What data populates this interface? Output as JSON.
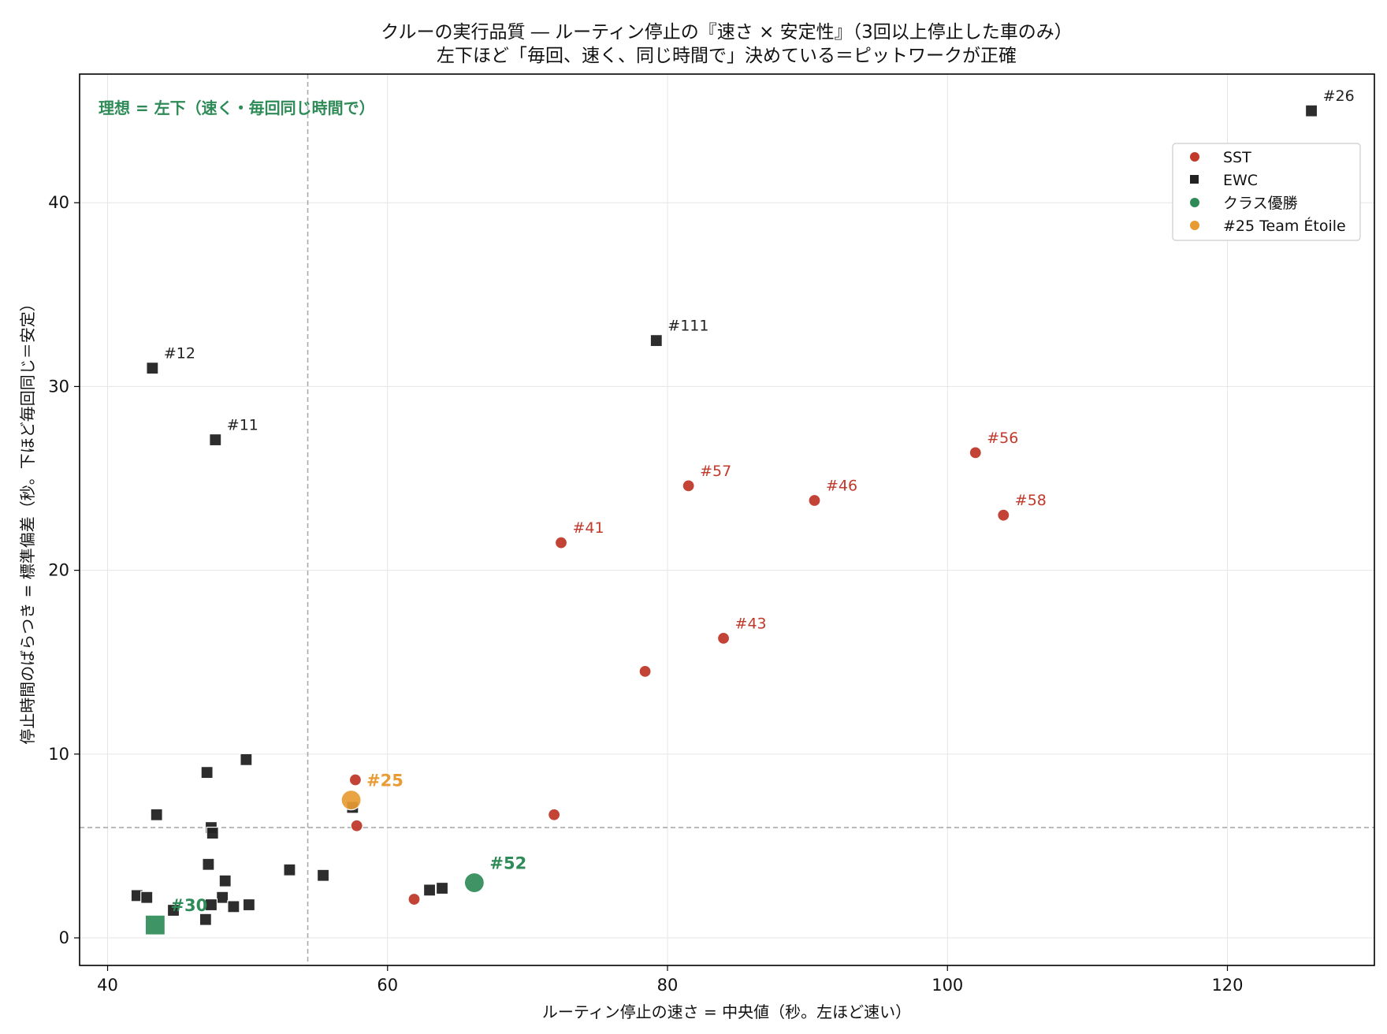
{
  "chart_data": {
    "type": "scatter",
    "title": "クルーの実行品質 ― ルーティン停止の『速さ × 安定性』（3回以上停止した車のみ）",
    "subtitle": "左下ほど「毎回、速く、同じ時間で」決めている＝ピットワークが正確",
    "xlabel": "ルーティン停止の速さ = 中央値（秒。左ほど速い）",
    "ylabel": "停止時間のばらつき = 標準偏差（秒。下ほど毎回同じ＝安定）",
    "xlim": [
      38,
      130.5
    ],
    "ylim": [
      -1.5,
      47
    ],
    "xticks": [
      40,
      60,
      80,
      100,
      120
    ],
    "yticks": [
      0,
      10,
      20,
      30,
      40
    ],
    "grid": true,
    "legend_position": "upper-right",
    "annotation": "理想 = 左下（速く・毎回同じ時間で）",
    "reference_lines": {
      "x_median": 54.3,
      "y_median": 6.0
    },
    "colors": {
      "SST": "#c0392b",
      "EWC": "#222222",
      "winner": "#2e8b57",
      "etoile": "#e89b33"
    },
    "series": [
      {
        "name": "SST",
        "marker": "circle",
        "points": [
          {
            "x": 72.4,
            "y": 21.5,
            "label": "#41"
          },
          {
            "x": 81.5,
            "y": 24.6,
            "label": "#57"
          },
          {
            "x": 90.5,
            "y": 23.8,
            "label": "#46"
          },
          {
            "x": 102.0,
            "y": 26.4,
            "label": "#56"
          },
          {
            "x": 104.0,
            "y": 23.0,
            "label": "#58"
          },
          {
            "x": 84.0,
            "y": 16.3,
            "label": "#43"
          },
          {
            "x": 78.4,
            "y": 14.5,
            "label": ""
          },
          {
            "x": 71.9,
            "y": 6.7,
            "label": ""
          },
          {
            "x": 57.7,
            "y": 8.6,
            "label": ""
          },
          {
            "x": 57.8,
            "y": 6.1,
            "label": ""
          },
          {
            "x": 61.9,
            "y": 2.1,
            "label": ""
          }
        ]
      },
      {
        "name": "EWC",
        "marker": "square",
        "points": [
          {
            "x": 126.0,
            "y": 45.0,
            "label": "#26"
          },
          {
            "x": 79.2,
            "y": 32.5,
            "label": "#111"
          },
          {
            "x": 43.2,
            "y": 31.0,
            "label": "#12"
          },
          {
            "x": 47.7,
            "y": 27.1,
            "label": "#11"
          },
          {
            "x": 49.9,
            "y": 9.7,
            "label": ""
          },
          {
            "x": 47.1,
            "y": 9.0,
            "label": ""
          },
          {
            "x": 43.5,
            "y": 6.7,
            "label": ""
          },
          {
            "x": 47.4,
            "y": 6.0,
            "label": ""
          },
          {
            "x": 47.5,
            "y": 5.7,
            "label": ""
          },
          {
            "x": 57.5,
            "y": 7.1,
            "label": ""
          },
          {
            "x": 47.2,
            "y": 4.0,
            "label": ""
          },
          {
            "x": 53.0,
            "y": 3.7,
            "label": ""
          },
          {
            "x": 55.4,
            "y": 3.4,
            "label": ""
          },
          {
            "x": 48.4,
            "y": 3.1,
            "label": ""
          },
          {
            "x": 42.1,
            "y": 2.3,
            "label": ""
          },
          {
            "x": 42.8,
            "y": 2.2,
            "label": ""
          },
          {
            "x": 48.2,
            "y": 2.2,
            "label": ""
          },
          {
            "x": 47.4,
            "y": 1.8,
            "label": ""
          },
          {
            "x": 49.0,
            "y": 1.7,
            "label": ""
          },
          {
            "x": 50.1,
            "y": 1.8,
            "label": ""
          },
          {
            "x": 44.7,
            "y": 1.5,
            "label": ""
          },
          {
            "x": 47.0,
            "y": 1.0,
            "label": ""
          },
          {
            "x": 63.0,
            "y": 2.6,
            "label": ""
          },
          {
            "x": 63.9,
            "y": 2.7,
            "label": ""
          }
        ]
      },
      {
        "name": "クラス優勝",
        "marker": "circle",
        "points": [
          {
            "x": 66.2,
            "y": 3.0,
            "label": "#52",
            "marker": "circle"
          },
          {
            "x": 43.4,
            "y": 0.7,
            "label": "#30",
            "marker": "square"
          }
        ]
      },
      {
        "name": "#25 Team Étoile",
        "marker": "circle",
        "points": [
          {
            "x": 57.4,
            "y": 7.5,
            "label": "#25"
          }
        ]
      }
    ]
  }
}
